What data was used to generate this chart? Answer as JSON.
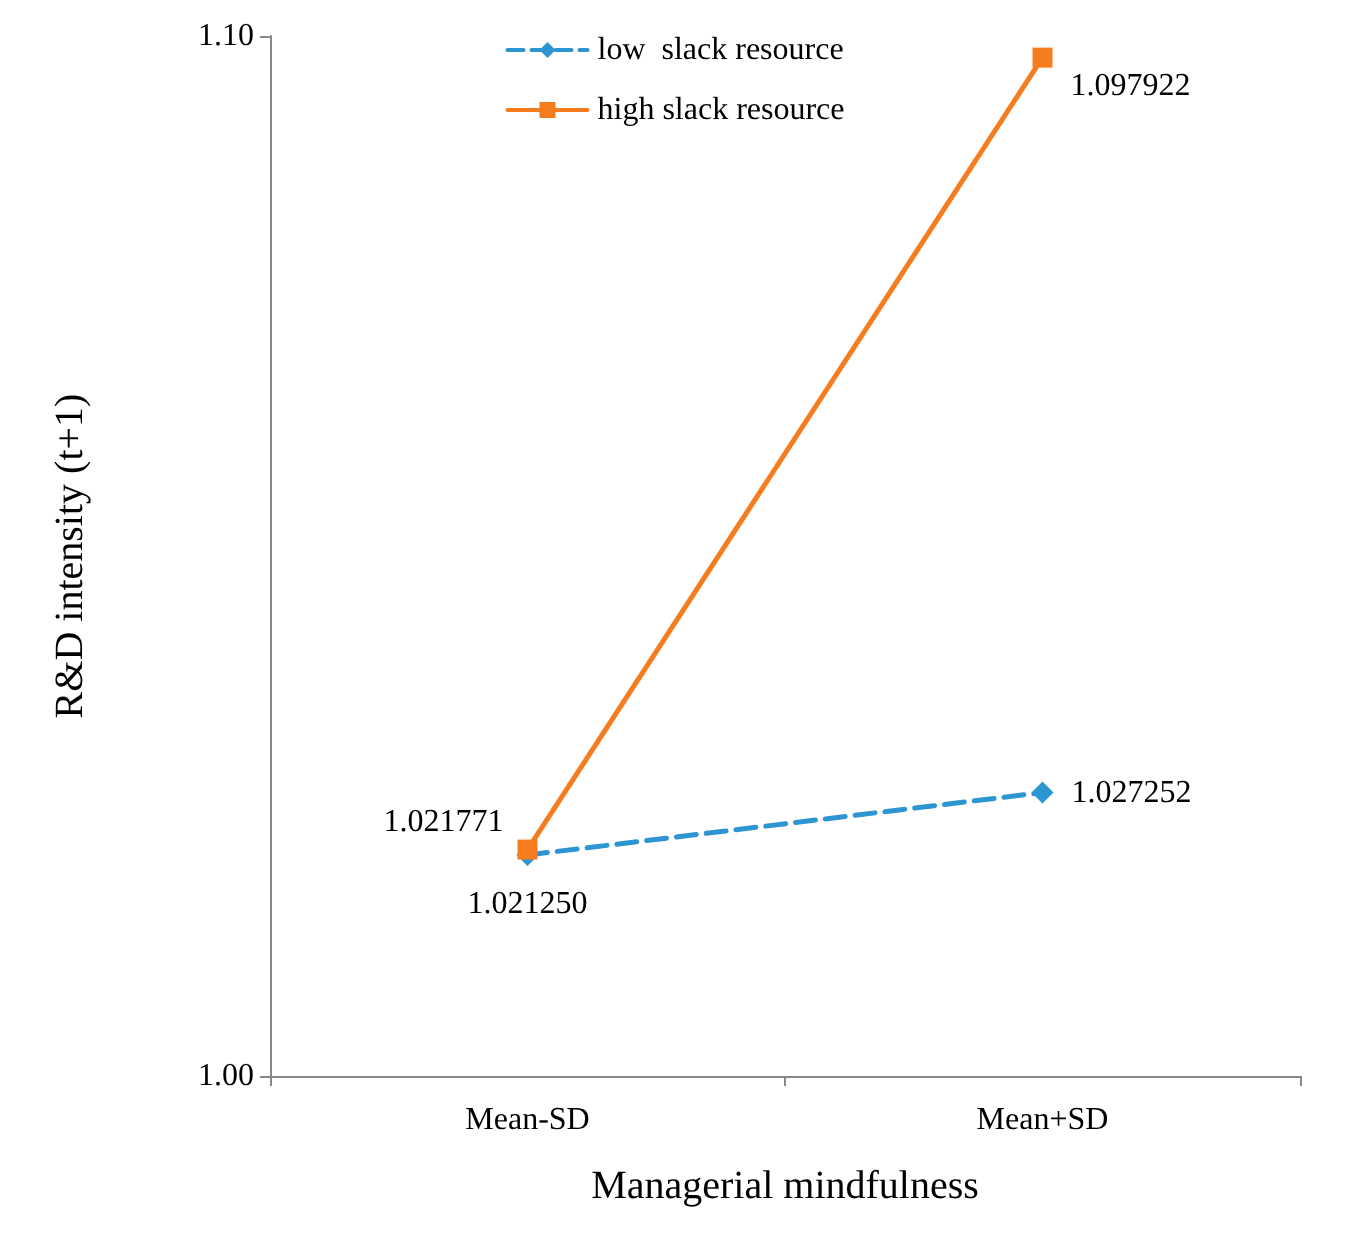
{
  "chart_data": {
    "type": "line",
    "xlabel": "Managerial mindfulness",
    "ylabel": "R&D intensity (t+1)",
    "categories": [
      "Mean-SD",
      "Mean+SD"
    ],
    "series": [
      {
        "name": "low  slack resource",
        "color": "#2e95d3",
        "values": [
          1.02125,
          1.027252
        ],
        "value_labels": [
          "1.021250",
          "1.027252"
        ],
        "marker": "diamond",
        "line_style": "dashed"
      },
      {
        "name": "high slack resource",
        "color": "#f57c1f",
        "values": [
          1.021771,
          1.097922
        ],
        "value_labels": [
          "1.021771",
          "1.097922"
        ],
        "marker": "square",
        "line_style": "solid"
      }
    ],
    "ylim": [
      1.0,
      1.1
    ],
    "yticks": [
      {
        "value": 1.0,
        "label": "1.00"
      },
      {
        "value": 1.1,
        "label": "1.10"
      }
    ],
    "grid": false,
    "legend": "top"
  }
}
